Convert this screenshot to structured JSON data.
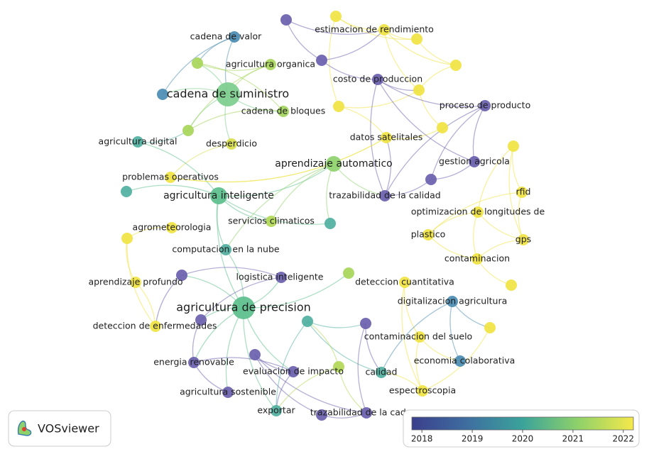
{
  "network": {
    "nodes": [
      {
        "label": "cadena de valor",
        "color": "#4a8cb2"
      },
      {
        "label": "estimacion de rendimiento",
        "color": "#f0e442"
      },
      {
        "label": "agricultura organica",
        "color": "#a8d65a"
      },
      {
        "label": "cadena de suministro",
        "color": "#7ccd8c"
      },
      {
        "label": "costo de produccion",
        "color": "#6a5fae"
      },
      {
        "label": "cadena de bloques",
        "color": "#a3d45c"
      },
      {
        "label": "proceso de producto",
        "color": "#6a5fae"
      },
      {
        "label": "datos satelitales",
        "color": "#f0e442"
      },
      {
        "label": "agricultura digital",
        "color": "#4fb0a0"
      },
      {
        "label": "desperdicio",
        "color": "#d8df4c"
      },
      {
        "label": "aprendizaje automatico",
        "color": "#8ed26c"
      },
      {
        "label": "gestion agricola",
        "color": "#6a5fae"
      },
      {
        "label": "problemas operativos",
        "color": "#f0e442"
      },
      {
        "label": "agricultura inteligente",
        "color": "#5cbf8c"
      },
      {
        "label": "trazabilidad de la calidad",
        "color": "#6a5fae"
      },
      {
        "label": "rfid",
        "color": "#f0e442"
      },
      {
        "label": "optimizacion de longitudes de",
        "color": "#f0e442"
      },
      {
        "label": "servicios climaticos",
        "color": "#b2d856"
      },
      {
        "label": "agrometeorologia",
        "color": "#f0e442"
      },
      {
        "label": "plastico",
        "color": "#f0e442"
      },
      {
        "label": "gps",
        "color": "#f0e442"
      },
      {
        "label": "computacion en la nube",
        "color": "#4fae9e"
      },
      {
        "label": "contaminacion",
        "color": "#f0e442"
      },
      {
        "label": "logistica inteligente",
        "color": "#6a5fae"
      },
      {
        "label": "aprendizaje profundo",
        "color": "#f0e442"
      },
      {
        "label": "deteccion cuantitativa",
        "color": "#f0e442"
      },
      {
        "label": "agricultura de precision",
        "color": "#5cbf8c"
      },
      {
        "label": "digitalizacion agricultura",
        "color": "#4a8cb2"
      },
      {
        "label": "deteccion de enfermedades",
        "color": "#f0e442"
      },
      {
        "label": "contaminacion del suelo",
        "color": "#f0e442"
      },
      {
        "label": "energia renovable",
        "color": "#6a5fae"
      },
      {
        "label": "economia colaborativa",
        "color": "#4a8cb2"
      },
      {
        "label": "evaluacion de impacto",
        "color": "#6a5fae"
      },
      {
        "label": "calidad",
        "color": "#4fb0a0"
      },
      {
        "label": "agricultura sostenible",
        "color": "#6a5fae"
      },
      {
        "label": "espectroscopia",
        "color": "#f0e442"
      },
      {
        "label": "exportar",
        "color": "#4fb0a0"
      },
      {
        "label": "trazabilidad de la cadena",
        "color": "#6a5fae"
      },
      {
        "color": "#6a5fae"
      },
      {
        "color": "#f0e442"
      },
      {
        "color": "#6a5fae"
      },
      {
        "color": "#f0e442"
      },
      {
        "color": "#f0e442"
      },
      {
        "color": "#f0e442"
      },
      {
        "color": "#f0e442"
      },
      {
        "color": "#a8d65a"
      },
      {
        "color": "#4a8cb2"
      },
      {
        "color": "#a8d65a"
      },
      {
        "color": "#f0e442"
      },
      {
        "color": "#6a5fae"
      },
      {
        "color": "#f0e442"
      },
      {
        "color": "#4fb0a0"
      },
      {
        "color": "#4fb0a0"
      },
      {
        "color": "#f0e442"
      },
      {
        "color": "#6a5fae"
      },
      {
        "color": "#6a5fae"
      },
      {
        "color": "#a8d65a"
      },
      {
        "color": "#4fb0a0"
      },
      {
        "color": "#6a5fae"
      },
      {
        "color": "#f0e442"
      },
      {
        "color": "#f0e442"
      },
      {
        "color": "#6a5fae"
      },
      {
        "color": "#b2d856"
      },
      {
        "color": "#6a5fae"
      }
    ],
    "color_scale": {
      "range": [
        2017.8,
        2022.2
      ],
      "ticks": [
        2018,
        2019,
        2020,
        2021,
        2022
      ]
    },
    "logo": "VOSviewer"
  }
}
